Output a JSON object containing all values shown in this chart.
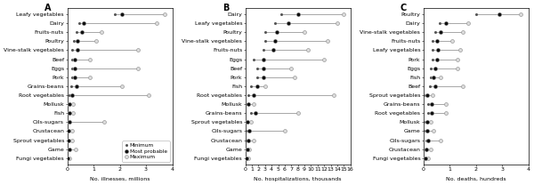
{
  "panel_A": {
    "title": "A",
    "xlabel": "No. illnesses, millions",
    "xlim": [
      0,
      4
    ],
    "xticks": [
      0,
      1,
      2,
      3,
      4
    ],
    "categories": [
      "Leafy vegetables",
      "Dairy",
      "Fruits-nuts",
      "Poultry",
      "Vine-stalk vegetables",
      "Beef",
      "Eggs",
      "Pork",
      "Grains-beans",
      "Root vegetables",
      "Mollusk",
      "Fish",
      "Oils-sugars",
      "Crustacean",
      "Sprout vegetables",
      "Game",
      "Fungi vegetables"
    ],
    "min": [
      1.8,
      0.45,
      0.35,
      0.25,
      0.2,
      0.18,
      0.18,
      0.18,
      0.15,
      0.1,
      0.05,
      0.05,
      0.02,
      0.02,
      0.02,
      0.02,
      0.02
    ],
    "most": [
      2.1,
      0.62,
      0.55,
      0.38,
      0.38,
      0.28,
      0.28,
      0.28,
      0.35,
      0.18,
      0.09,
      0.09,
      0.08,
      0.04,
      0.04,
      0.07,
      0.03
    ],
    "max": [
      3.7,
      3.4,
      1.3,
      1.1,
      2.7,
      0.85,
      2.7,
      0.85,
      2.1,
      3.1,
      0.22,
      0.22,
      1.4,
      0.18,
      0.18,
      0.32,
      0.1
    ]
  },
  "panel_B": {
    "title": "B",
    "xlabel": "No. hospitalizations, thousands",
    "xlim": [
      0,
      16
    ],
    "xticks": [
      0,
      1,
      2,
      3,
      4,
      5,
      6,
      7,
      8,
      9,
      10,
      11,
      12,
      13,
      14,
      15,
      16
    ],
    "categories": [
      "Dairy",
      "Leafy vegetables",
      "Poultry",
      "Vine-stalk vegetables",
      "Fruits-nuts",
      "Eggs",
      "Beef",
      "Pork",
      "Fish",
      "Root vegetables",
      "Mollusk",
      "Grains-beans",
      "Sprout vegetables",
      "Oils-sugars",
      "Crustacean",
      "Game",
      "Fungi vegetables"
    ],
    "min": [
      5.5,
      4.5,
      3.0,
      3.0,
      2.8,
      1.2,
      1.8,
      1.8,
      0.8,
      0.5,
      0.25,
      0.8,
      0.1,
      0.3,
      0.2,
      0.1,
      0.08
    ],
    "most": [
      8.0,
      6.5,
      4.8,
      4.5,
      4.2,
      2.8,
      2.8,
      2.8,
      1.8,
      1.2,
      0.5,
      1.6,
      0.25,
      0.6,
      0.4,
      0.25,
      0.15
    ],
    "max": [
      15.0,
      14.0,
      9.0,
      12.5,
      9.5,
      12.0,
      7.0,
      7.5,
      3.0,
      13.5,
      1.2,
      8.0,
      0.8,
      6.0,
      1.2,
      0.6,
      0.4
    ]
  },
  "panel_C": {
    "title": "C",
    "xlabel": "No. deaths, hundreds",
    "xlim": [
      0,
      4
    ],
    "xticks": [
      0,
      1,
      2,
      3,
      4
    ],
    "categories": [
      "Poultry",
      "Dairy",
      "Vine-stalk vegetables",
      "Fruits-nuts",
      "Leafy vegetables",
      "Pork",
      "Eggs",
      "Fish",
      "Beef",
      "Sprout vegetables",
      "Grains-beans",
      "Root vegetables",
      "Mollusk",
      "Game",
      "Oils-sugars",
      "Crustacean",
      "Fungi vegetables"
    ],
    "min": [
      2.0,
      0.6,
      0.45,
      0.35,
      0.35,
      0.35,
      0.28,
      0.28,
      0.25,
      0.08,
      0.18,
      0.18,
      0.08,
      0.08,
      0.12,
      0.08,
      0.04
    ],
    "most": [
      2.9,
      0.85,
      0.65,
      0.5,
      0.55,
      0.5,
      0.45,
      0.38,
      0.45,
      0.13,
      0.32,
      0.32,
      0.13,
      0.13,
      0.18,
      0.1,
      0.07
    ],
    "max": [
      3.7,
      1.7,
      1.5,
      1.1,
      1.4,
      1.3,
      1.3,
      0.65,
      1.5,
      0.35,
      0.85,
      0.85,
      0.28,
      0.38,
      0.65,
      0.28,
      0.16
    ]
  },
  "legend": {
    "min_label": "Minimum",
    "most_label": "Most probable",
    "max_label": "Maximum"
  },
  "font_size": 4.5,
  "title_font_size": 7.0,
  "marker_size_most": 3.5,
  "marker_size_min": 2.2,
  "marker_size_max": 2.8,
  "line_color": "#999999",
  "min_marker_color": "#555555",
  "most_marker_color": "#111111",
  "max_marker_color": "#dddddd",
  "bg_color": "#ffffff"
}
